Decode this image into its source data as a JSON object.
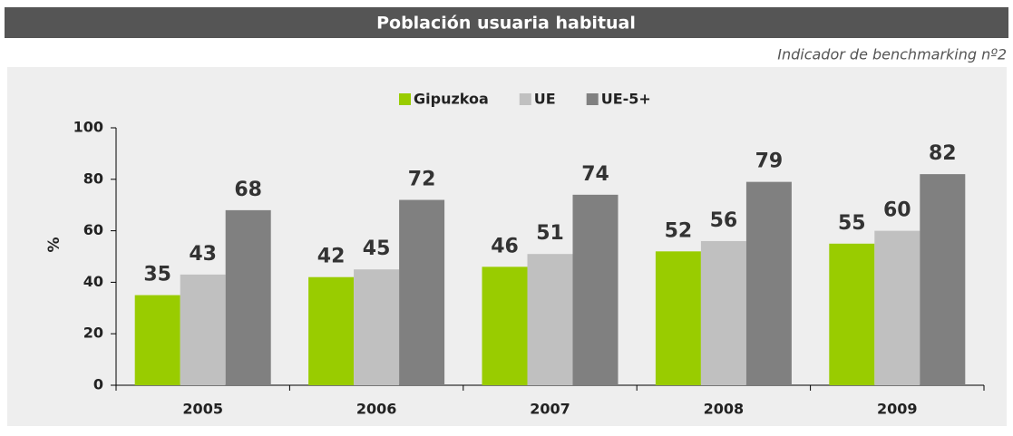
{
  "chart_data": {
    "type": "bar",
    "title": "Población usuaria habitual",
    "subtitle": "Indicador de benchmarking nº2",
    "ylabel": "%",
    "categories": [
      "2005",
      "2006",
      "2007",
      "2008",
      "2009"
    ],
    "series": [
      {
        "name": "Gipuzkoa",
        "color": "#99cc00",
        "values": [
          35,
          42,
          46,
          52,
          55
        ]
      },
      {
        "name": "UE",
        "color": "#c0c0c0",
        "values": [
          43,
          45,
          51,
          56,
          60
        ]
      },
      {
        "name": "UE-5+",
        "color": "#808080",
        "values": [
          68,
          72,
          74,
          79,
          82
        ]
      }
    ],
    "ylim": [
      0,
      100
    ],
    "yticks": [
      0,
      20,
      40,
      60,
      80,
      100
    ],
    "legend": "top",
    "grid": false
  }
}
